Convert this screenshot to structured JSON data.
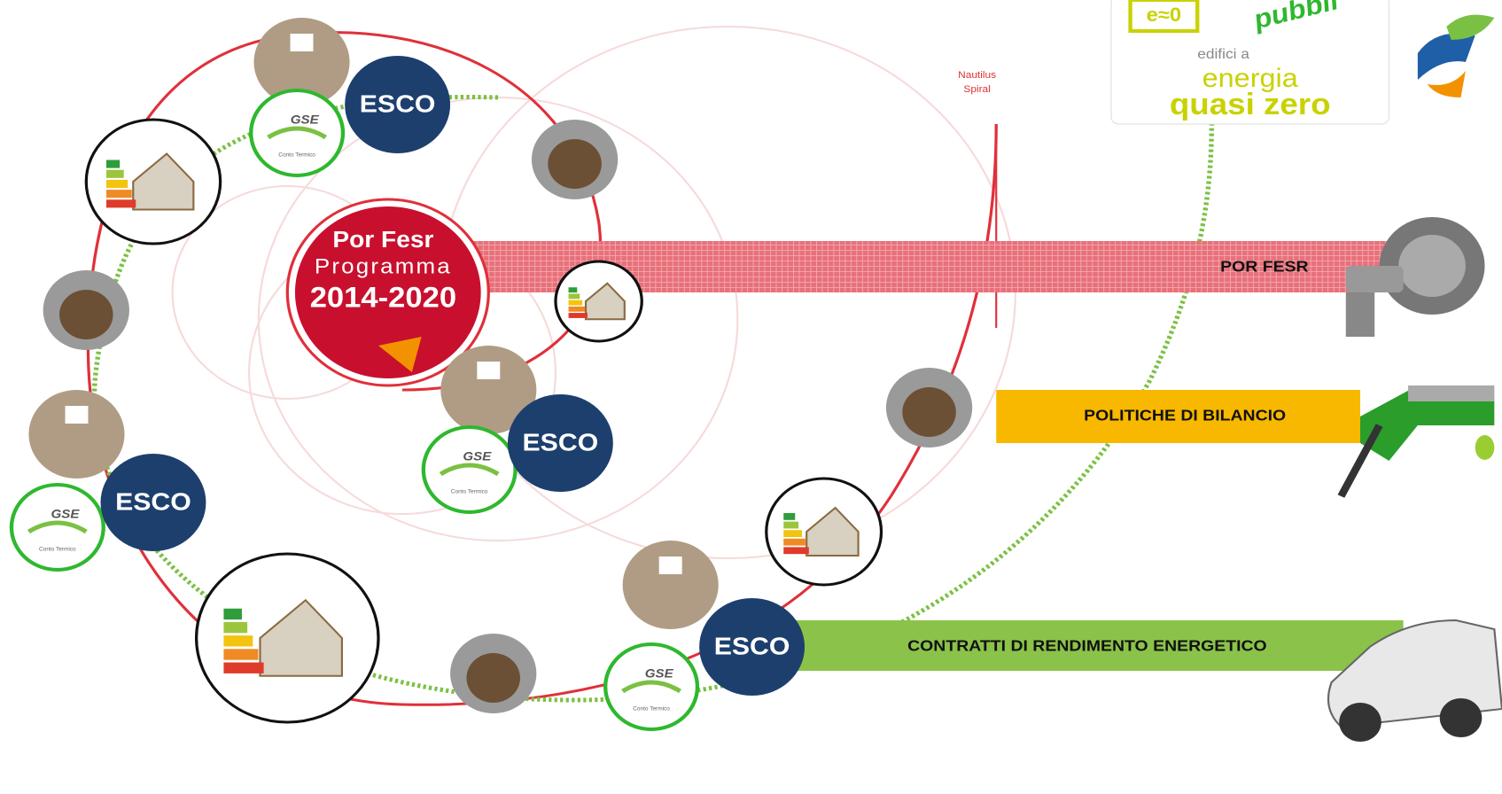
{
  "logo": {
    "badge": "e≈0",
    "corner_text": "pubbli",
    "line1": "edifici a",
    "line2": "energia",
    "line3": "quasi zero"
  },
  "spiral_label": [
    "Nautilus",
    "Spiral"
  ],
  "por_fesr_logo": {
    "line1": "Por Fesr",
    "line2": "Programma",
    "line3": "2014-2020"
  },
  "clusters": [
    {
      "esco": "ESCO",
      "gse": "GSE",
      "gse_caption": "Conto Termico"
    },
    {
      "esco": "ESCO",
      "gse": "GSE",
      "gse_caption": "Conto Termico"
    },
    {
      "esco": "ESCO",
      "gse": "GSE",
      "gse_caption": "Conto Termico"
    },
    {
      "esco": "ESCO",
      "gse": "GSE",
      "gse_caption": "Conto Termico"
    }
  ],
  "bars": [
    {
      "label": "POR FESR"
    },
    {
      "label": "POLITICHE DI BILANCIO"
    },
    {
      "label": "CONTRATTI DI RENDIMENTO ENERGETICO"
    }
  ]
}
